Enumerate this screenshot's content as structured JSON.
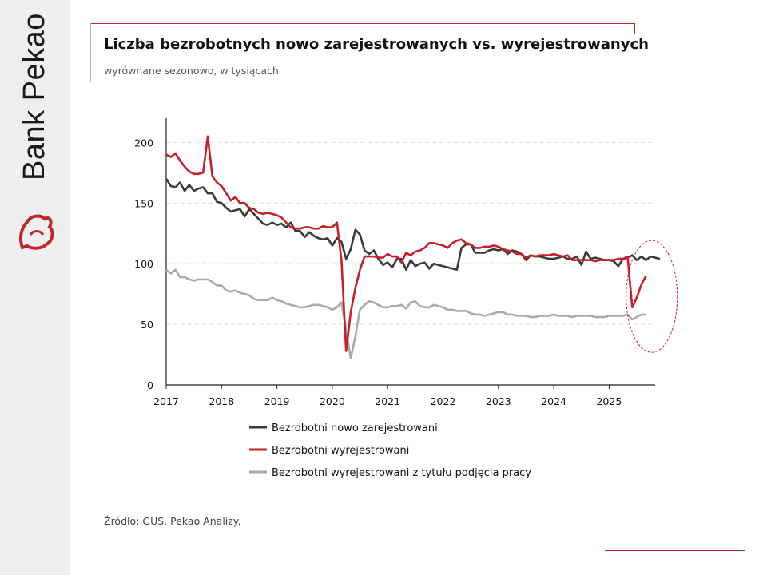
{
  "brand": {
    "logo_text": "Bank Pekao"
  },
  "header": {
    "title": "Liczba bezrobotnych nowo zarejestrowanych vs. wyrejestrowanych",
    "subtitle": "wyrównane sezonowo, w tysiącach"
  },
  "footer": {
    "source": "Źródło: GUS, Pekao Analizy."
  },
  "colors": {
    "accent": "#c0272d",
    "series_dark": "#3b3b3b",
    "series_red": "#c8202a",
    "series_gray": "#aaaaaa",
    "grid": "#d9d9d9"
  },
  "chart_data": {
    "type": "line",
    "title": "Liczba bezrobotnych nowo zarejestrowanych vs. wyrejestrowanych",
    "subtitle": "wyrównane sezonowo, w tysiącach",
    "xlabel": "",
    "ylabel": "",
    "x_start": "2017-01",
    "x_frequency": "monthly",
    "xlim": [
      "2017-01",
      "2025-12"
    ],
    "x_ticks": [
      "2017",
      "2018",
      "2019",
      "2020",
      "2021",
      "2022",
      "2023",
      "2024",
      "2025"
    ],
    "ylim": [
      0,
      220
    ],
    "y_ticks": [
      0,
      50,
      100,
      150,
      200
    ],
    "grid": "horizontal dashed",
    "legend_position": "bottom",
    "annotation": "dashed red ellipse highlighting 2025 data",
    "series": [
      {
        "name": "Bezrobotni nowo zarejestrowani",
        "color": "#3b3b3b",
        "values": [
          170,
          164,
          163,
          167,
          160,
          165,
          160,
          162,
          163,
          158,
          158,
          151,
          150,
          146,
          143,
          144,
          145,
          139,
          145,
          141,
          137,
          133,
          132,
          134,
          132,
          133,
          130,
          134,
          127,
          127,
          122,
          126,
          123,
          121,
          120,
          121,
          115,
          121,
          118,
          104,
          112,
          128,
          124,
          111,
          108,
          111,
          104,
          99,
          101,
          97,
          104,
          104,
          95,
          103,
          98,
          100,
          101,
          96,
          100,
          99,
          98,
          97,
          96,
          95,
          113,
          116,
          116,
          109,
          109,
          109,
          111,
          112,
          111,
          112,
          108,
          111,
          110,
          108,
          103,
          107,
          106,
          106,
          105,
          104,
          104,
          105,
          106,
          104,
          104,
          106,
          99,
          110,
          104,
          105,
          104,
          103,
          103,
          102,
          98,
          104,
          105,
          107,
          103,
          106,
          103,
          106,
          105,
          104
        ]
      },
      {
        "name": "Bezrobotni wyrejestrowani",
        "color": "#c8202a",
        "values": [
          190,
          188,
          191,
          185,
          180,
          176,
          174,
          174,
          175,
          205,
          172,
          167,
          164,
          158,
          152,
          155,
          150,
          150,
          146,
          145,
          142,
          141,
          142,
          141,
          140,
          138,
          134,
          130,
          129,
          129,
          130,
          130,
          129,
          129,
          131,
          130,
          130,
          134,
          103,
          28,
          60,
          80,
          95,
          106,
          106,
          106,
          105,
          105,
          108,
          106,
          106,
          101,
          109,
          107,
          110,
          111,
          113,
          117,
          117,
          116,
          115,
          113,
          117,
          119,
          120,
          117,
          116,
          113,
          113,
          114,
          114,
          115,
          114,
          112,
          111,
          110,
          108,
          108,
          105,
          107,
          106,
          107,
          107,
          107,
          108,
          107,
          106,
          107,
          103,
          103,
          103,
          103,
          103,
          102,
          103,
          103,
          103,
          103,
          104,
          104,
          106,
          64,
          72,
          83,
          90
        ]
      },
      {
        "name": "Bezrobotni wyrejestrowani z tytułu podjęcia pracy",
        "color": "#aaaaaa",
        "values": [
          95,
          92,
          95,
          89,
          89,
          87,
          86,
          87,
          87,
          87,
          85,
          82,
          82,
          78,
          77,
          78,
          76,
          75,
          74,
          71,
          70,
          70,
          70,
          72,
          70,
          69,
          67,
          66,
          65,
          64,
          64,
          65,
          66,
          66,
          65,
          64,
          62,
          64,
          68,
          45,
          22,
          40,
          62,
          66,
          69,
          68,
          66,
          64,
          64,
          65,
          65,
          66,
          63,
          68,
          69,
          65,
          64,
          64,
          66,
          65,
          64,
          62,
          62,
          61,
          61,
          61,
          59,
          58,
          58,
          57,
          58,
          59,
          60,
          60,
          58,
          58,
          57,
          57,
          57,
          56,
          56,
          57,
          57,
          57,
          58,
          57,
          57,
          57,
          56,
          57,
          57,
          57,
          57,
          56,
          56,
          56,
          57,
          57,
          57,
          57,
          58,
          54,
          56,
          58,
          58
        ]
      }
    ]
  }
}
